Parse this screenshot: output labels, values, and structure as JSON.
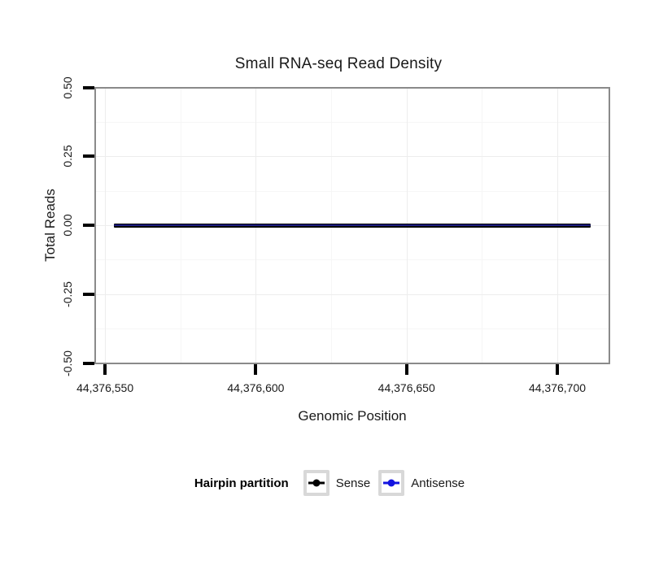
{
  "chart_data": {
    "type": "line",
    "title": "Small RNA-seq Read Density",
    "xlabel": "Genomic Position",
    "ylabel": "Total Reads",
    "x_ticks": {
      "values": [
        44376550,
        44376600,
        44376650,
        44376700
      ],
      "labels": [
        "44,376,550",
        "44,376,600",
        "44,376,650",
        "44,376,700"
      ]
    },
    "y_ticks": {
      "values": [
        0.5,
        0.25,
        0.0,
        -0.25,
        -0.5
      ],
      "labels": [
        "0.50",
        "0.25",
        "0.00",
        "-0.25",
        "-0.50"
      ]
    },
    "xlim": [
      44376547,
      44376717
    ],
    "ylim": [
      -0.5,
      0.5
    ],
    "grid": true,
    "series": [
      {
        "name": "Sense",
        "x": [
          44376553,
          44376711
        ],
        "y": [
          0,
          0
        ],
        "color": "#000000",
        "stroke_px": 5
      },
      {
        "name": "Antisense",
        "x": [
          44376553,
          44376711
        ],
        "y": [
          0,
          0
        ],
        "color": "#1d1d80",
        "stroke_px": 2.4
      }
    ],
    "legend": {
      "title": "Hairpin partition",
      "position": "bottom",
      "entries": [
        {
          "label": "Sense",
          "color": "#000000"
        },
        {
          "label": "Antisense",
          "color": "#1313e0"
        }
      ]
    },
    "colors": {
      "panel_border": "#8a8a8a",
      "tick": "#000000",
      "grid_major": "#ededed",
      "grid_minor": "#f6f6f6",
      "text": "#1a1a1a"
    }
  }
}
